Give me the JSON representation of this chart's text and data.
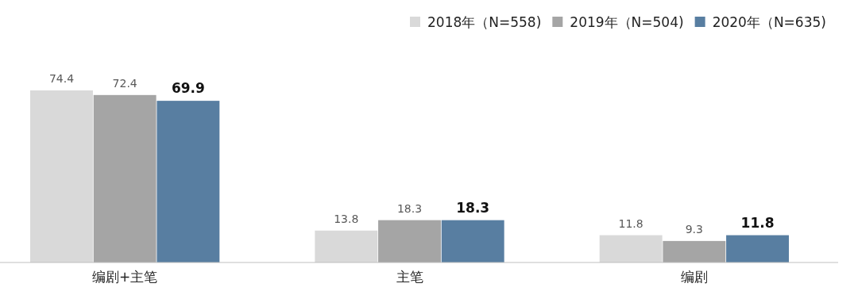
{
  "chart_data": {
    "type": "bar",
    "categories": [
      "编剧+主笔",
      "主笔",
      "编剧"
    ],
    "series": [
      {
        "name": "2018年（N=558)",
        "color": "#d9d9d9",
        "values": [
          74.4,
          13.8,
          11.8
        ]
      },
      {
        "name": "2019年（N=504)",
        "color": "#a5a5a5",
        "values": [
          72.4,
          18.3,
          9.3
        ]
      },
      {
        "name": "2020年（N=635)",
        "color": "#587ea1",
        "values": [
          69.9,
          18.3,
          11.8
        ]
      }
    ],
    "data_labels": true,
    "legend": "top right",
    "grid": false
  }
}
